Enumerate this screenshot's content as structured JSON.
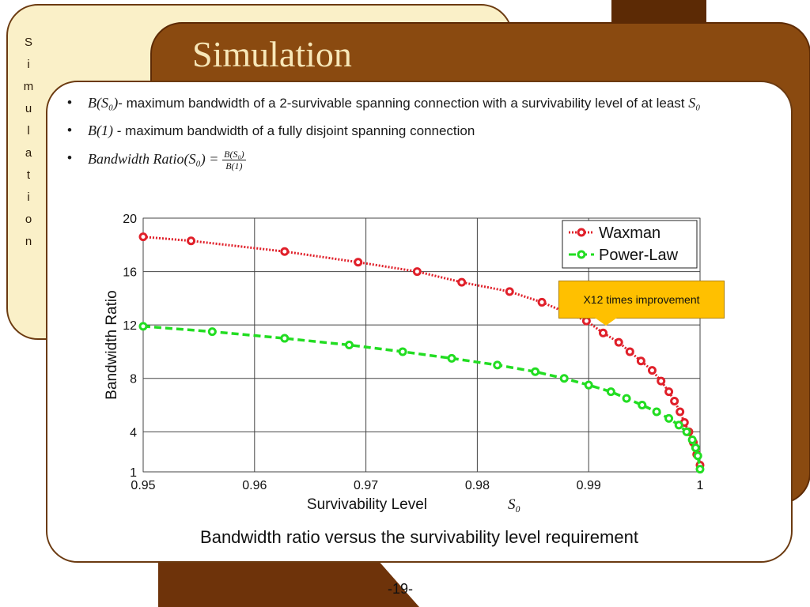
{
  "side_letters": [
    "S",
    "i",
    "m",
    "u",
    "l",
    "a",
    "t",
    "i",
    "o",
    "n"
  ],
  "slide_title": "Simulation",
  "bullets": {
    "b1_math": "B(S₀)",
    "b1_text": "- maximum bandwidth  of a 2-survivable spanning connection with a survivability level of at least ",
    "b1_tail": "S₀",
    "b2_math": "B(1)",
    "b2_text": " - maximum bandwidth  of a fully disjoint  spanning connection",
    "b3_lhs": "Bandwidth Ratio(S₀) =",
    "b3_num": "B(S₀)",
    "b3_den": "B(1)"
  },
  "callout": "X12 times improvement",
  "caption": "Bandwidth ratio  versus the survivability level requirement",
  "page_number": "-19-",
  "colors": {
    "waxman": "#e0202a",
    "powerlaw": "#22dd22",
    "card": "#8a4a10",
    "cream": "#faf0c8"
  },
  "chart_data": {
    "type": "line",
    "xlabel": "Survivability Level",
    "xlabel_symbol": "S₀",
    "ylabel": "Bandwidth Ratio",
    "xlim": [
      0.95,
      1.0
    ],
    "ylim": [
      1,
      20
    ],
    "xticks": [
      0.95,
      0.96,
      0.97,
      0.98,
      0.99,
      1
    ],
    "xtick_labels": [
      "0.95",
      "0.96",
      "0.97",
      "0.98",
      "0.99",
      "1"
    ],
    "yticks": [
      1,
      4,
      8,
      12,
      16,
      20
    ],
    "grid": true,
    "legend_position": "top-right",
    "series": [
      {
        "name": "Waxman",
        "color": "#e0202a",
        "style": "dotted",
        "x": [
          0.95,
          0.9543,
          0.9627,
          0.9693,
          0.9746,
          0.9786,
          0.9829,
          0.9858,
          0.9898,
          0.9913,
          0.9927,
          0.9937,
          0.9947,
          0.9957,
          0.9965,
          0.9972,
          0.9977,
          0.9982,
          0.9986,
          0.999,
          0.9994,
          0.9997,
          1.0
        ],
        "y": [
          18.6,
          18.3,
          17.5,
          16.7,
          16.0,
          15.2,
          14.5,
          13.7,
          12.3,
          11.4,
          10.7,
          10.0,
          9.3,
          8.6,
          7.8,
          7.0,
          6.3,
          5.5,
          4.7,
          4.0,
          3.2,
          2.3,
          1.5
        ]
      },
      {
        "name": "Power-Law",
        "color": "#22dd22",
        "style": "dashed",
        "x": [
          0.95,
          0.9562,
          0.9627,
          0.9685,
          0.9733,
          0.9777,
          0.9818,
          0.9852,
          0.9878,
          0.99,
          0.992,
          0.9934,
          0.9948,
          0.9961,
          0.9972,
          0.9981,
          0.9988,
          0.9993,
          0.9996,
          0.9998,
          1.0
        ],
        "y": [
          11.9,
          11.5,
          11.0,
          10.5,
          10.0,
          9.5,
          9.0,
          8.5,
          8.0,
          7.5,
          7.0,
          6.5,
          6.0,
          5.5,
          5.0,
          4.5,
          4.0,
          3.4,
          2.8,
          2.2,
          1.2
        ]
      }
    ]
  }
}
